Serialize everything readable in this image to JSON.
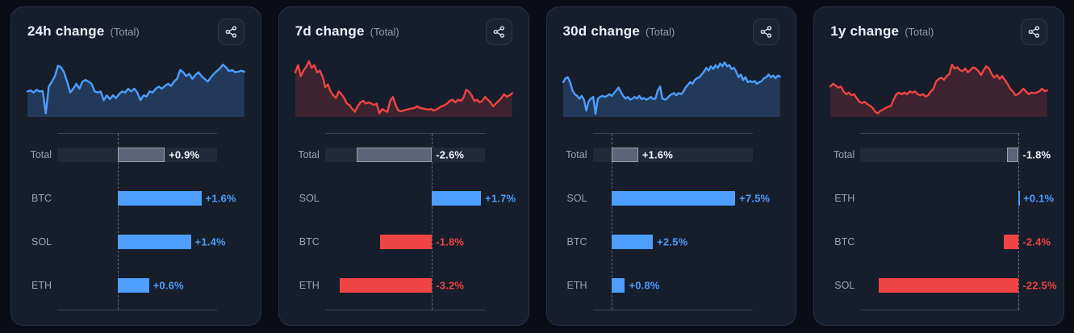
{
  "colors": {
    "page_bg": "#0a0d15",
    "card_bg": "#161d2b",
    "card_border": "#273248",
    "title": "#edf0f6",
    "muted": "#929cad",
    "label": "#9aa4b4",
    "value_text": "#f2f4f8",
    "positive": "#4d9eff",
    "negative": "#ef4444",
    "negative_text": "#f25050",
    "axis": "#3b475c",
    "zero_line": "#5c6a82",
    "track": "#202938",
    "total_bar_fill": "#5a6579",
    "total_bar_border": "#98a2b2"
  },
  "cards": [
    {
      "title": "24h change",
      "subtitle": "(Total)",
      "share_button": {
        "icon": "share-network-icon"
      },
      "sparkline": {
        "trend_color": "#4d9eff",
        "fill_color": "rgba(77,158,255,0.22)",
        "points": [
          42,
          44,
          40,
          45,
          42,
          43,
          2,
          51,
          60,
          70,
          89,
          86,
          77,
          60,
          40,
          47,
          56,
          47,
          60,
          63,
          60,
          56,
          42,
          40,
          42,
          26,
          35,
          28,
          35,
          30,
          37,
          42,
          40,
          47,
          42,
          47,
          40,
          26,
          35,
          33,
          42,
          40,
          47,
          51,
          47,
          52,
          56,
          52,
          60,
          65,
          81,
          77,
          70,
          74,
          65,
          72,
          77,
          70,
          65,
          60,
          67,
          74,
          79,
          84,
          91,
          86,
          79,
          81,
          77,
          78,
          80,
          78
        ]
      },
      "bar_chart": {
        "axis_min": -1.15,
        "axis_max": 1.9,
        "rows": [
          {
            "label": "Total",
            "value": 0.9,
            "display": "+0.9%",
            "kind": "total"
          },
          {
            "label": "BTC",
            "value": 1.6,
            "display": "+1.6%",
            "kind": "asset"
          },
          {
            "label": "SOL",
            "value": 1.4,
            "display": "+1.4%",
            "kind": "asset"
          },
          {
            "label": "ETH",
            "value": 0.6,
            "display": "+0.6%",
            "kind": "asset"
          }
        ]
      }
    },
    {
      "title": "7d change",
      "subtitle": "(Total)",
      "share_button": {
        "icon": "share-network-icon"
      },
      "sparkline": {
        "trend_color": "#ef4444",
        "fill_color": "rgba(239,68,68,0.18)",
        "points": [
          77,
          90,
          70,
          80,
          87,
          97,
          85,
          90,
          77,
          80,
          70,
          50,
          55,
          42,
          35,
          30,
          42,
          37,
          30,
          20,
          17,
          10,
          5,
          15,
          22,
          25,
          20,
          22,
          20,
          17,
          20,
          2,
          10,
          7,
          5,
          25,
          32,
          17,
          7,
          6,
          7,
          9,
          10,
          11,
          12,
          15,
          12,
          11,
          10,
          9,
          10,
          7,
          9,
          12,
          15,
          17,
          20,
          25,
          27,
          22,
          27,
          25,
          30,
          45,
          42,
          35,
          25,
          27,
          22,
          25,
          32,
          27,
          22,
          15,
          20,
          25,
          30,
          37,
          32,
          35,
          39
        ]
      },
      "bar_chart": {
        "axis_min": -3.7,
        "axis_max": 1.83,
        "rows": [
          {
            "label": "Total",
            "value": -2.6,
            "display": "-2.6%",
            "kind": "total"
          },
          {
            "label": "SOL",
            "value": 1.7,
            "display": "+1.7%",
            "kind": "asset"
          },
          {
            "label": "BTC",
            "value": -1.8,
            "display": "-1.8%",
            "kind": "asset"
          },
          {
            "label": "ETH",
            "value": -3.2,
            "display": "-3.2%",
            "kind": "asset"
          }
        ]
      }
    },
    {
      "title": "30d change",
      "subtitle": "(Total)",
      "share_button": {
        "icon": "share-network-icon"
      },
      "sparkline": {
        "trend_color": "#4d9eff",
        "fill_color": "rgba(77,158,255,0.22)",
        "points": [
          59,
          66,
          68,
          59,
          44,
          37,
          34,
          29,
          34,
          27,
          7,
          24,
          29,
          32,
          1,
          29,
          32,
          34,
          32,
          34,
          37,
          34,
          39,
          44,
          49,
          41,
          34,
          29,
          32,
          27,
          29,
          32,
          29,
          34,
          28,
          30,
          27,
          29,
          32,
          28,
          29,
          44,
          51,
          29,
          27,
          29,
          34,
          37,
          39,
          35,
          39,
          37,
          41,
          49,
          54,
          59,
          56,
          63,
          66,
          68,
          73,
          78,
          85,
          80,
          88,
          83,
          90,
          85,
          93,
          88,
          95,
          88,
          90,
          83,
          85,
          78,
          68,
          73,
          63,
          68,
          59,
          61,
          59,
          61,
          56,
          59,
          61,
          66,
          68,
          73,
          68,
          71,
          66,
          71,
          69
        ]
      },
      "bar_chart": {
        "axis_min": -1.16,
        "axis_max": 8.55,
        "rows": [
          {
            "label": "Total",
            "value": 1.6,
            "display": "+1.6%",
            "kind": "total"
          },
          {
            "label": "SOL",
            "value": 7.5,
            "display": "+7.5%",
            "kind": "asset"
          },
          {
            "label": "BTC",
            "value": 2.5,
            "display": "+2.5%",
            "kind": "asset"
          },
          {
            "label": "ETH",
            "value": 0.8,
            "display": "+0.8%",
            "kind": "asset"
          }
        ]
      }
    },
    {
      "title": "1y change",
      "subtitle": "(Total)",
      "share_button": {
        "icon": "share-network-icon"
      },
      "sparkline": {
        "trend_color": "#ef4444",
        "fill_color": "rgba(239,68,68,0.18)",
        "points": [
          51,
          56,
          53,
          49,
          51,
          42,
          37,
          40,
          35,
          37,
          30,
          23,
          21,
          23,
          19,
          16,
          12,
          5,
          2,
          7,
          9,
          12,
          14,
          16,
          28,
          37,
          40,
          37,
          40,
          37,
          42,
          40,
          42,
          37,
          35,
          37,
          33,
          35,
          42,
          47,
          60,
          65,
          67,
          63,
          70,
          74,
          91,
          84,
          86,
          81,
          79,
          84,
          77,
          81,
          86,
          84,
          79,
          72,
          81,
          88,
          84,
          74,
          67,
          72,
          65,
          70,
          63,
          56,
          47,
          42,
          35,
          37,
          42,
          47,
          42,
          37,
          40,
          39,
          40,
          42,
          47,
          43,
          44
        ]
      },
      "bar_chart": {
        "axis_min": -25.5,
        "axis_max": 0.25,
        "rows": [
          {
            "label": "Total",
            "value": -1.8,
            "display": "-1.8%",
            "kind": "total"
          },
          {
            "label": "ETH",
            "value": 0.1,
            "display": "+0.1%",
            "kind": "asset"
          },
          {
            "label": "BTC",
            "value": -2.4,
            "display": "-2.4%",
            "kind": "asset"
          },
          {
            "label": "SOL",
            "value": -22.5,
            "display": "-22.5%",
            "kind": "asset"
          }
        ]
      }
    }
  ],
  "chart_data": [
    {
      "type": "bar",
      "title": "24h change (Total)",
      "orientation": "horizontal",
      "categories": [
        "Total",
        "BTC",
        "SOL",
        "ETH"
      ],
      "values": [
        0.9,
        1.6,
        1.4,
        0.6
      ],
      "value_labels": [
        "+0.9%",
        "+1.6%",
        "+1.4%",
        "+0.6%"
      ],
      "xlim": [
        -1.15,
        1.9
      ],
      "sparkline_trend": "up",
      "sparkline_color": "#4d9eff"
    },
    {
      "type": "bar",
      "title": "7d change (Total)",
      "orientation": "horizontal",
      "categories": [
        "Total",
        "SOL",
        "BTC",
        "ETH"
      ],
      "values": [
        -2.6,
        1.7,
        -1.8,
        -3.2
      ],
      "value_labels": [
        "-2.6%",
        "+1.7%",
        "-1.8%",
        "-3.2%"
      ],
      "xlim": [
        -3.7,
        1.83
      ],
      "sparkline_trend": "down",
      "sparkline_color": "#ef4444"
    },
    {
      "type": "bar",
      "title": "30d change (Total)",
      "orientation": "horizontal",
      "categories": [
        "Total",
        "SOL",
        "BTC",
        "ETH"
      ],
      "values": [
        1.6,
        7.5,
        2.5,
        0.8
      ],
      "value_labels": [
        "+1.6%",
        "+7.5%",
        "+2.5%",
        "+0.8%"
      ],
      "xlim": [
        -1.16,
        8.55
      ],
      "sparkline_trend": "up",
      "sparkline_color": "#4d9eff"
    },
    {
      "type": "bar",
      "title": "1y change (Total)",
      "orientation": "horizontal",
      "categories": [
        "Total",
        "ETH",
        "BTC",
        "SOL"
      ],
      "values": [
        -1.8,
        0.1,
        -2.4,
        -22.5
      ],
      "value_labels": [
        "-1.8%",
        "+0.1%",
        "-2.4%",
        "-22.5%"
      ],
      "xlim": [
        -25.5,
        0.25
      ],
      "sparkline_trend": "down",
      "sparkline_color": "#ef4444"
    }
  ]
}
